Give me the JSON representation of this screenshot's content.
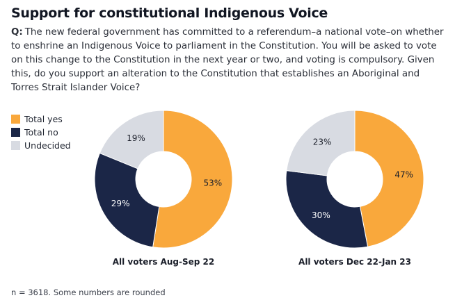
{
  "title": "Support for constitutional Indigenous Voice",
  "question": {
    "prefix": "Q:",
    "text": "The new federal government has committed to a referendum–a national vote–on whether to enshrine an Indigenous Voice to parliament in the Constitution. You will be asked to vote on this change to the Constitution in the next year or two, and voting is compulsory. Given this, do you support an alteration to the Constitution that establishes an Aboriginal and Torres Strait Islander Voice?"
  },
  "legend": [
    {
      "label": "Total yes",
      "color": "#f9a83c"
    },
    {
      "label": "Total no",
      "color": "#1b2647"
    },
    {
      "label": "Undecided",
      "color": "#d8dbe2"
    }
  ],
  "chart_data": [
    {
      "type": "pie",
      "variant": "donut",
      "caption": "All voters Aug-Sep 22",
      "slices": [
        {
          "category": "Total yes",
          "value": 53,
          "label": "53%",
          "color": "#f9a83c"
        },
        {
          "category": "Total no",
          "value": 29,
          "label": "29%",
          "color": "#1b2647"
        },
        {
          "category": "Undecided",
          "value": 19,
          "label": "19%",
          "color": "#d8dbe2"
        }
      ]
    },
    {
      "type": "pie",
      "variant": "donut",
      "caption": "All voters Dec 22-Jan 23",
      "slices": [
        {
          "category": "Total yes",
          "value": 47,
          "label": "47%",
          "color": "#f9a83c"
        },
        {
          "category": "Total no",
          "value": 30,
          "label": "30%",
          "color": "#1b2647"
        },
        {
          "category": "Undecided",
          "value": 23,
          "label": "23%",
          "color": "#d8dbe2"
        }
      ]
    }
  ],
  "note": "n = 3618. Some numbers are rounded"
}
